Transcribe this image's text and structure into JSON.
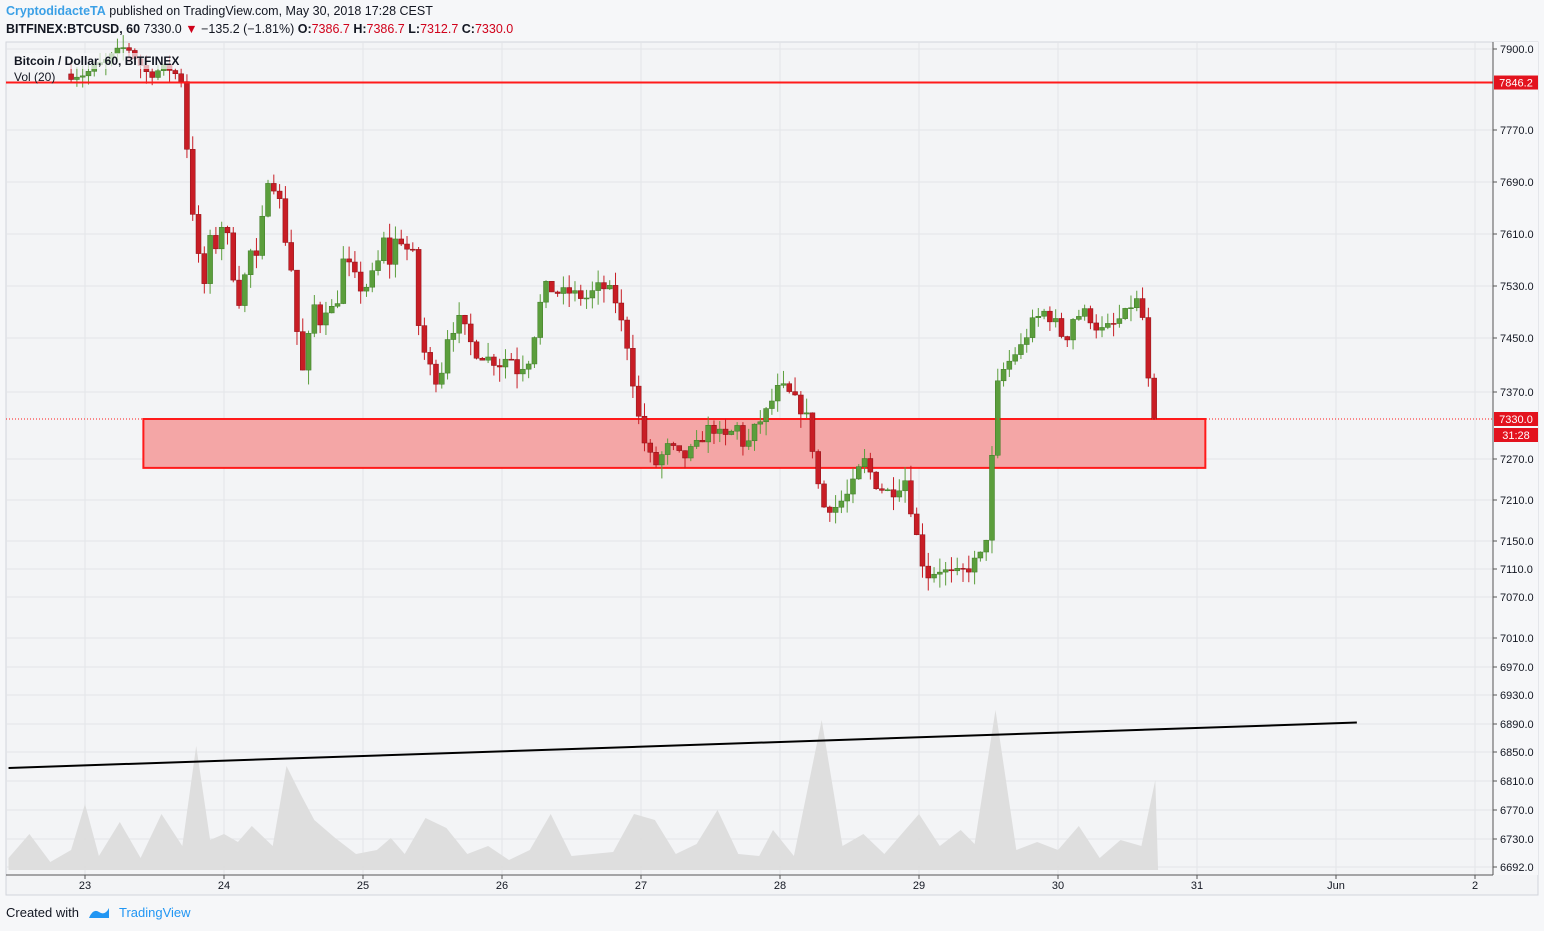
{
  "header": {
    "author": "CryptodidacteTA",
    "published_text": "published on TradingView.com, May 30, 2018 17:28 CEST",
    "symbol": "BITFINEX:BTCUSD, 60",
    "last": "7330.0",
    "change_arrow": "▼",
    "change": "−135.2 (−1.81%)",
    "o_label": "O:",
    "o_value": "7386.7",
    "h_label": "H:",
    "h_value": "7386.7",
    "l_label": "L:",
    "l_value": "7312.7",
    "c_label": "C:",
    "c_value": "7330.0"
  },
  "legend": {
    "title": "Bitcoin / Dollar, 60, BITFINEX",
    "volume": "Vol (20)"
  },
  "footer": {
    "created_with": "Created with",
    "brand": "TradingView"
  },
  "colors": {
    "up": "#5b9e3c",
    "down": "#c81d25",
    "zone": "#f4a6a6",
    "level_line": "#ff1a1a",
    "trendline": "#000000",
    "grid": "#e3e5e8"
  },
  "chart_data": {
    "type": "candlestick",
    "x_axis": {
      "tick_labels": [
        "23",
        "24",
        "25",
        "26",
        "27",
        "28",
        "29",
        "30",
        "31",
        "Jun",
        "2"
      ]
    },
    "y_axis": {
      "tick_labels": [
        "7900.0",
        "7770.0",
        "7690.0",
        "7610.0",
        "7530.0",
        "7450.0",
        "7370.0",
        "7270.0",
        "7210.0",
        "7150.0",
        "7110.0",
        "7070.0",
        "7010.0",
        "6970.0",
        "6930.0",
        "6890.0",
        "6850.0",
        "6810.0",
        "6770.0",
        "6730.0",
        "6692.0"
      ]
    },
    "price_tags": [
      {
        "label": "7846.2",
        "value": 7846.2
      },
      {
        "label": "7330.0",
        "value": 7330.0
      },
      {
        "label": "31:28"
      }
    ],
    "horizontal_level": 7846.2,
    "zone": {
      "top": 7330,
      "bottom": 7257,
      "from_day": 23.42,
      "to_day": 31.06
    },
    "trendline": {
      "start": {
        "day": 22.45,
        "value": 6828
      },
      "end": {
        "day": 32.15,
        "value": 6892
      }
    },
    "close_path": [
      [
        23.0,
        7860
      ],
      [
        23.15,
        7880
      ],
      [
        23.3,
        7905
      ],
      [
        23.45,
        7860
      ],
      [
        23.6,
        7870
      ],
      [
        23.7,
        7850
      ],
      [
        23.75,
        7690
      ],
      [
        23.8,
        7600
      ],
      [
        23.85,
        7520
      ],
      [
        23.9,
        7600
      ],
      [
        23.95,
        7590
      ],
      [
        24.0,
        7640
      ],
      [
        24.05,
        7570
      ],
      [
        24.1,
        7500
      ],
      [
        24.2,
        7590
      ],
      [
        24.25,
        7560
      ],
      [
        24.3,
        7700
      ],
      [
        24.35,
        7690
      ],
      [
        24.4,
        7660
      ],
      [
        24.45,
        7590
      ],
      [
        24.5,
        7540
      ],
      [
        24.55,
        7380
      ],
      [
        24.6,
        7440
      ],
      [
        24.65,
        7500
      ],
      [
        24.7,
        7470
      ],
      [
        24.75,
        7510
      ],
      [
        24.8,
        7480
      ],
      [
        24.85,
        7570
      ],
      [
        24.9,
        7560
      ],
      [
        25.0,
        7520
      ],
      [
        25.1,
        7560
      ],
      [
        25.15,
        7600
      ],
      [
        25.2,
        7560
      ],
      [
        25.25,
        7620
      ],
      [
        25.3,
        7580
      ],
      [
        25.35,
        7600
      ],
      [
        25.4,
        7470
      ],
      [
        25.45,
        7420
      ],
      [
        25.55,
        7380
      ],
      [
        25.6,
        7450
      ],
      [
        25.7,
        7480
      ],
      [
        25.8,
        7430
      ],
      [
        25.9,
        7420
      ],
      [
        26.0,
        7410
      ],
      [
        26.05,
        7430
      ],
      [
        26.1,
        7400
      ],
      [
        26.2,
        7420
      ],
      [
        26.3,
        7530
      ],
      [
        26.4,
        7520
      ],
      [
        26.5,
        7520
      ],
      [
        26.6,
        7510
      ],
      [
        26.7,
        7530
      ],
      [
        26.8,
        7520
      ],
      [
        26.9,
        7440
      ],
      [
        27.0,
        7310
      ],
      [
        27.05,
        7280
      ],
      [
        27.1,
        7260
      ],
      [
        27.2,
        7290
      ],
      [
        27.3,
        7270
      ],
      [
        27.4,
        7290
      ],
      [
        27.5,
        7320
      ],
      [
        27.6,
        7300
      ],
      [
        27.7,
        7320
      ],
      [
        27.75,
        7280
      ],
      [
        27.8,
        7310
      ],
      [
        27.9,
        7340
      ],
      [
        28.0,
        7380
      ],
      [
        28.1,
        7360
      ],
      [
        28.2,
        7330
      ],
      [
        28.3,
        7200
      ],
      [
        28.4,
        7200
      ],
      [
        28.5,
        7220
      ],
      [
        28.6,
        7270
      ],
      [
        28.7,
        7230
      ],
      [
        28.8,
        7220
      ],
      [
        28.9,
        7240
      ],
      [
        29.0,
        7140
      ],
      [
        29.05,
        7100
      ],
      [
        29.15,
        7110
      ],
      [
        29.25,
        7100
      ],
      [
        29.35,
        7110
      ],
      [
        29.45,
        7130
      ],
      [
        29.5,
        7170
      ],
      [
        29.55,
        7370
      ],
      [
        29.6,
        7400
      ],
      [
        29.7,
        7430
      ],
      [
        29.75,
        7440
      ],
      [
        29.8,
        7470
      ],
      [
        29.9,
        7490
      ],
      [
        30.0,
        7470
      ],
      [
        30.05,
        7440
      ],
      [
        30.1,
        7480
      ],
      [
        30.2,
        7490
      ],
      [
        30.3,
        7460
      ],
      [
        30.4,
        7470
      ],
      [
        30.5,
        7490
      ],
      [
        30.55,
        7510
      ],
      [
        30.6,
        7500
      ],
      [
        30.65,
        7385
      ],
      [
        30.7,
        7330
      ]
    ],
    "volume_path": [
      [
        22.45,
        0.06
      ],
      [
        22.6,
        0.18
      ],
      [
        22.75,
        0.04
      ],
      [
        22.9,
        0.1
      ],
      [
        23.0,
        0.33
      ],
      [
        23.1,
        0.07
      ],
      [
        23.25,
        0.24
      ],
      [
        23.4,
        0.06
      ],
      [
        23.55,
        0.28
      ],
      [
        23.7,
        0.12
      ],
      [
        23.8,
        0.62
      ],
      [
        23.9,
        0.15
      ],
      [
        24.0,
        0.18
      ],
      [
        24.1,
        0.14
      ],
      [
        24.2,
        0.22
      ],
      [
        24.35,
        0.12
      ],
      [
        24.45,
        0.52
      ],
      [
        24.55,
        0.38
      ],
      [
        24.65,
        0.25
      ],
      [
        24.8,
        0.16
      ],
      [
        24.95,
        0.08
      ],
      [
        25.1,
        0.1
      ],
      [
        25.2,
        0.16
      ],
      [
        25.3,
        0.08
      ],
      [
        25.45,
        0.26
      ],
      [
        25.6,
        0.21
      ],
      [
        25.75,
        0.08
      ],
      [
        25.9,
        0.12
      ],
      [
        26.05,
        0.05
      ],
      [
        26.2,
        0.1
      ],
      [
        26.35,
        0.28
      ],
      [
        26.5,
        0.07
      ],
      [
        26.65,
        0.08
      ],
      [
        26.8,
        0.09
      ],
      [
        26.95,
        0.28
      ],
      [
        27.1,
        0.25
      ],
      [
        27.25,
        0.08
      ],
      [
        27.4,
        0.13
      ],
      [
        27.55,
        0.3
      ],
      [
        27.7,
        0.08
      ],
      [
        27.85,
        0.07
      ],
      [
        27.95,
        0.2
      ],
      [
        28.1,
        0.07
      ],
      [
        28.3,
        0.75
      ],
      [
        28.45,
        0.12
      ],
      [
        28.6,
        0.18
      ],
      [
        28.75,
        0.08
      ],
      [
        28.9,
        0.2
      ],
      [
        29.0,
        0.28
      ],
      [
        29.15,
        0.12
      ],
      [
        29.3,
        0.2
      ],
      [
        29.4,
        0.13
      ],
      [
        29.55,
        0.8
      ],
      [
        29.7,
        0.1
      ],
      [
        29.85,
        0.14
      ],
      [
        30.0,
        0.1
      ],
      [
        30.15,
        0.22
      ],
      [
        30.3,
        0.06
      ],
      [
        30.45,
        0.15
      ],
      [
        30.6,
        0.12
      ],
      [
        30.7,
        0.45
      ],
      [
        30.72,
        0.0
      ]
    ]
  }
}
